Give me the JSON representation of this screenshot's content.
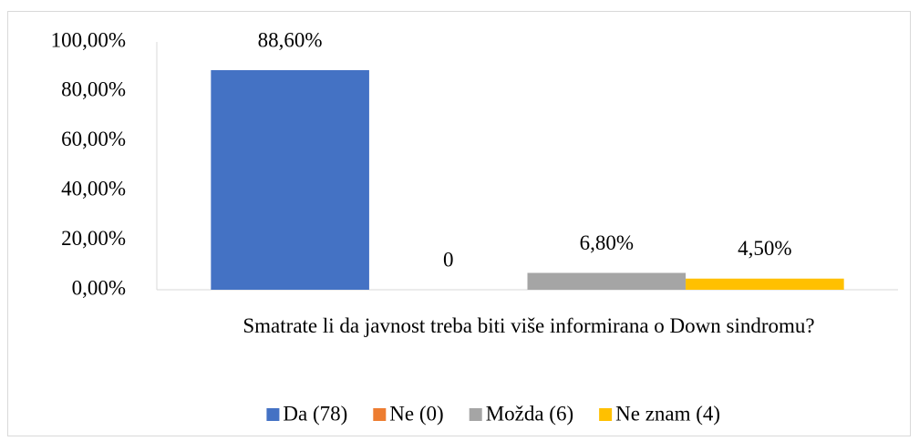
{
  "chart_data": {
    "type": "bar",
    "categories": [
      "Smatrate li da javnost treba biti više informirana o Down sindromu?"
    ],
    "series": [
      {
        "name": "Da (78)",
        "color": "#4472c4",
        "values": [
          88.6
        ],
        "value_labels": [
          "88,60%"
        ]
      },
      {
        "name": "Ne (0)",
        "color": "#ed7d31",
        "values": [
          0
        ],
        "value_labels": [
          "0"
        ]
      },
      {
        "name": "Možda (6)",
        "color": "#a5a5a5",
        "values": [
          6.8
        ],
        "value_labels": [
          "6,80%"
        ]
      },
      {
        "name": "Ne znam (4)",
        "color": "#ffc000",
        "values": [
          4.5
        ],
        "value_labels": [
          "4,50%"
        ]
      }
    ],
    "ylim": [
      0,
      100
    ],
    "yticks": [
      {
        "value": 0,
        "label": "0,00%"
      },
      {
        "value": 20,
        "label": "20,00%"
      },
      {
        "value": 40,
        "label": "40,00%"
      },
      {
        "value": 60,
        "label": "60,00%"
      },
      {
        "value": 80,
        "label": "80,00%"
      },
      {
        "value": 100,
        "label": "100,00%"
      }
    ],
    "grid": false,
    "legend": "bottom"
  }
}
